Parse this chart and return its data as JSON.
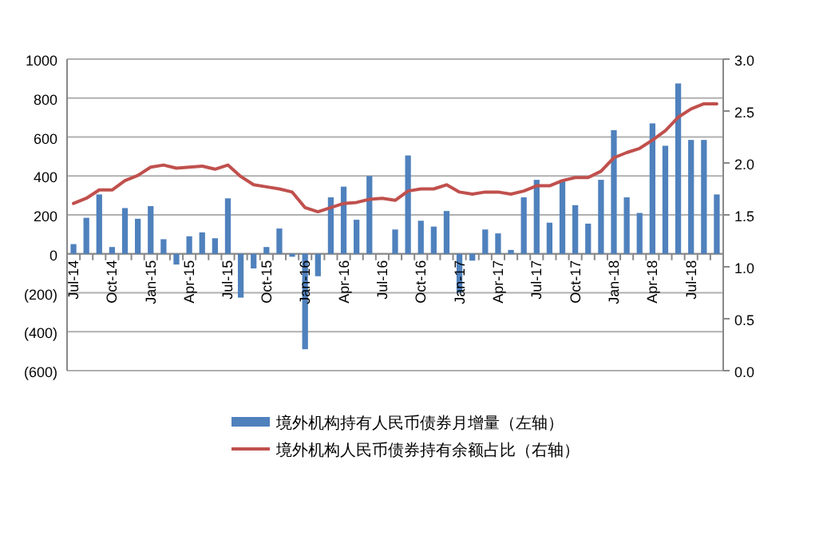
{
  "chart_data": {
    "type": "bar",
    "categories": [
      "Jul-14",
      null,
      null,
      "Oct-14",
      null,
      null,
      "Jan-15",
      null,
      null,
      "Apr-15",
      null,
      null,
      "Jul-15",
      null,
      null,
      "Oct-15",
      null,
      null,
      "Jan-16",
      null,
      null,
      "Apr-16",
      null,
      null,
      "Jul-16",
      null,
      null,
      "Oct-16",
      null,
      null,
      "Jan-17",
      null,
      null,
      "Apr-17",
      null,
      null,
      "Jul-17",
      null,
      null,
      "Oct-17",
      null,
      null,
      "Jan-18",
      null,
      null,
      "Apr-18",
      null,
      null,
      "Jul-18",
      null,
      null
    ],
    "series": [
      {
        "name": "境外机构持有人民币债券月增量（左轴）",
        "axis": "y",
        "color": "#4f81bd",
        "values": [
          50,
          185,
          305,
          35,
          235,
          180,
          245,
          75,
          -55,
          90,
          110,
          80,
          285,
          -225,
          -75,
          35,
          130,
          -15,
          -490,
          -115,
          290,
          345,
          175,
          400,
          0,
          125,
          505,
          170,
          140,
          220,
          -200,
          -35,
          125,
          105,
          20,
          290,
          380,
          160,
          380,
          250,
          155,
          380,
          635,
          290,
          210,
          670,
          555,
          875,
          585,
          585,
          305
        ]
      },
      {
        "name": "境外机构人民币债券持有余额占比（右轴）",
        "type": "line",
        "axis": "y2",
        "color": "#c0504d",
        "values": [
          1.61,
          1.66,
          1.74,
          1.74,
          1.83,
          1.88,
          1.96,
          1.98,
          1.95,
          1.96,
          1.97,
          1.94,
          1.98,
          1.87,
          1.79,
          1.77,
          1.75,
          1.72,
          1.57,
          1.53,
          1.57,
          1.61,
          1.62,
          1.65,
          1.66,
          1.64,
          1.73,
          1.75,
          1.75,
          1.79,
          1.72,
          1.7,
          1.72,
          1.72,
          1.7,
          1.73,
          1.78,
          1.78,
          1.83,
          1.86,
          1.86,
          1.92,
          2.05,
          2.1,
          2.14,
          2.22,
          2.31,
          2.44,
          2.52,
          2.57,
          2.57
        ]
      }
    ],
    "ylim": [
      -600,
      1000
    ],
    "yticks": [
      {
        "value": -600,
        "label": "(600)"
      },
      {
        "value": -400,
        "label": "(400)"
      },
      {
        "value": -200,
        "label": "(200)"
      },
      0,
      200,
      400,
      600,
      800,
      1000
    ],
    "y2lim": [
      0,
      3
    ],
    "y2ticks": [
      {
        "value": 0,
        "label": "0.0"
      },
      {
        "value": 0.5,
        "label": "0.5"
      },
      {
        "value": 1,
        "label": "1.0"
      },
      {
        "value": 1.5,
        "label": "1.5"
      },
      {
        "value": 2,
        "label": "2.0"
      },
      {
        "value": 2.5,
        "label": "2.5"
      },
      {
        "value": 3,
        "label": "3.0"
      }
    ],
    "grid": "y",
    "legend": "bottom"
  }
}
